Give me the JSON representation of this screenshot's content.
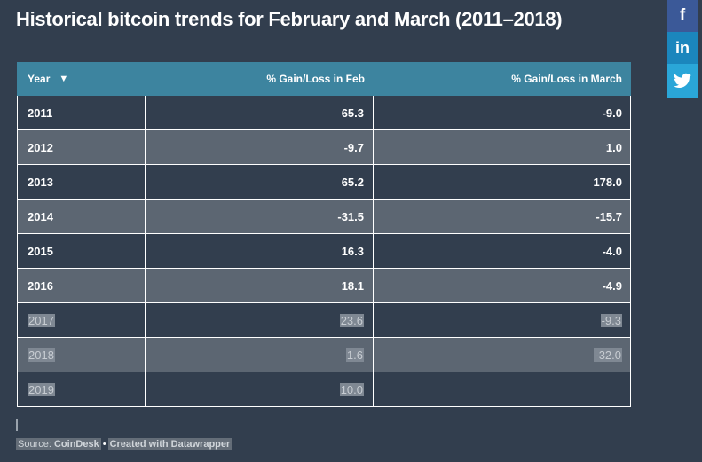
{
  "title": "Historical bitcoin trends for February and March (2011–2018)",
  "social": {
    "facebook": "f",
    "linkedin": "in",
    "twitter_icon": "twitter-bird-icon"
  },
  "table": {
    "headers": [
      "Year",
      "% Gain/Loss in Feb",
      "% Gain/Loss in March"
    ],
    "sort_icon": "▼",
    "rows": [
      [
        "2011",
        "65.3",
        "-9.0"
      ],
      [
        "2012",
        "-9.7",
        "1.0"
      ],
      [
        "2013",
        "65.2",
        "178.0"
      ],
      [
        "2014",
        "-31.5",
        "-15.7"
      ],
      [
        "2015",
        "16.3",
        "-4.0"
      ],
      [
        "2016",
        "18.1",
        "-4.9"
      ],
      [
        "2017",
        "23.6",
        "-9.3"
      ],
      [
        "2018",
        "1.6",
        "-32.0"
      ],
      [
        "2019",
        "10.0",
        ""
      ]
    ]
  },
  "footer": {
    "source_label": "Source: ",
    "source_name": "CoinDesk",
    "separator": "•",
    "credit": "Created with Datawrapper"
  },
  "colors": {
    "background": "#323e4e",
    "header": "#3d849f",
    "row_alt": "#5c6672",
    "facebook": "#3b5998",
    "linkedin": "#1b86bd",
    "twitter": "#2aa6d8"
  }
}
